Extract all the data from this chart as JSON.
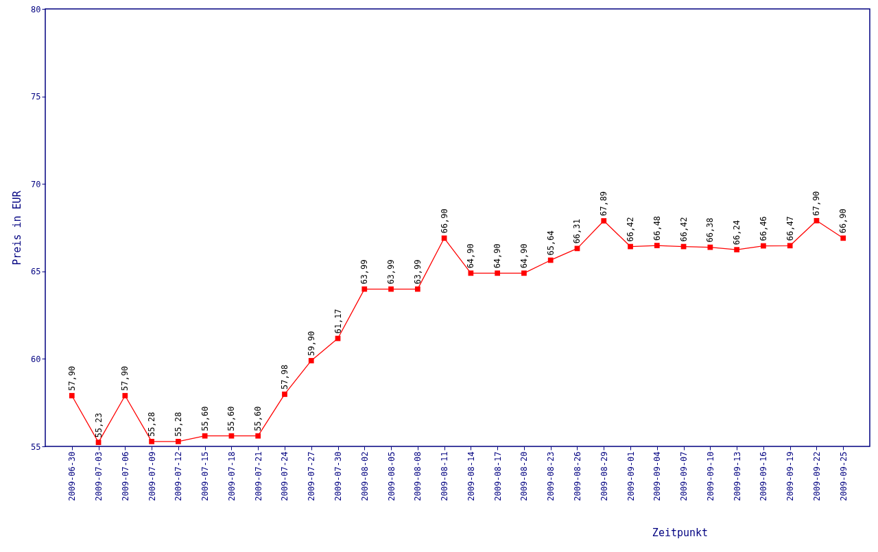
{
  "chart_data": {
    "type": "line",
    "xlabel": "Zeitpunkt",
    "ylabel": "Preis in EUR",
    "categories": [
      "2009-06-30",
      "2009-07-03",
      "2009-07-06",
      "2009-07-09",
      "2009-07-12",
      "2009-07-15",
      "2009-07-18",
      "2009-07-21",
      "2009-07-24",
      "2009-07-27",
      "2009-07-30",
      "2009-08-02",
      "2009-08-05",
      "2009-08-08",
      "2009-08-11",
      "2009-08-14",
      "2009-08-17",
      "2009-08-20",
      "2009-08-23",
      "2009-08-26",
      "2009-08-29",
      "2009-09-01",
      "2009-09-04",
      "2009-09-07",
      "2009-09-10",
      "2009-09-13",
      "2009-09-16",
      "2009-09-19",
      "2009-09-22",
      "2009-09-25"
    ],
    "series": [
      {
        "color": "#ff0000",
        "values": [
          57.9,
          55.23,
          57.9,
          55.28,
          55.28,
          55.6,
          55.6,
          55.6,
          57.98,
          59.9,
          61.17,
          63.99,
          63.99,
          63.99,
          66.9,
          64.9,
          64.9,
          64.9,
          65.64,
          66.31,
          67.89,
          66.42,
          66.48,
          66.42,
          66.38,
          66.24,
          66.46,
          66.47,
          67.9,
          66.9
        ],
        "value_labels": [
          "57,90",
          "55,23",
          "57,90",
          "55,28",
          "55,28",
          "55,60",
          "55,60",
          "55,60",
          "57,98",
          "59,90",
          "61,17",
          "63,99",
          "63,99",
          "63,99",
          "66,90",
          "64,90",
          "64,90",
          "64,90",
          "65,64",
          "66,31",
          "67,89",
          "66,42",
          "66,48",
          "66,42",
          "66,38",
          "66,24",
          "66,46",
          "66,47",
          "67,90",
          "66,90"
        ]
      }
    ],
    "ylim": [
      55,
      80
    ],
    "yticks": [
      55,
      60,
      65,
      70,
      75,
      80
    ],
    "grid": false,
    "marker": "square",
    "line_style": "solid"
  }
}
